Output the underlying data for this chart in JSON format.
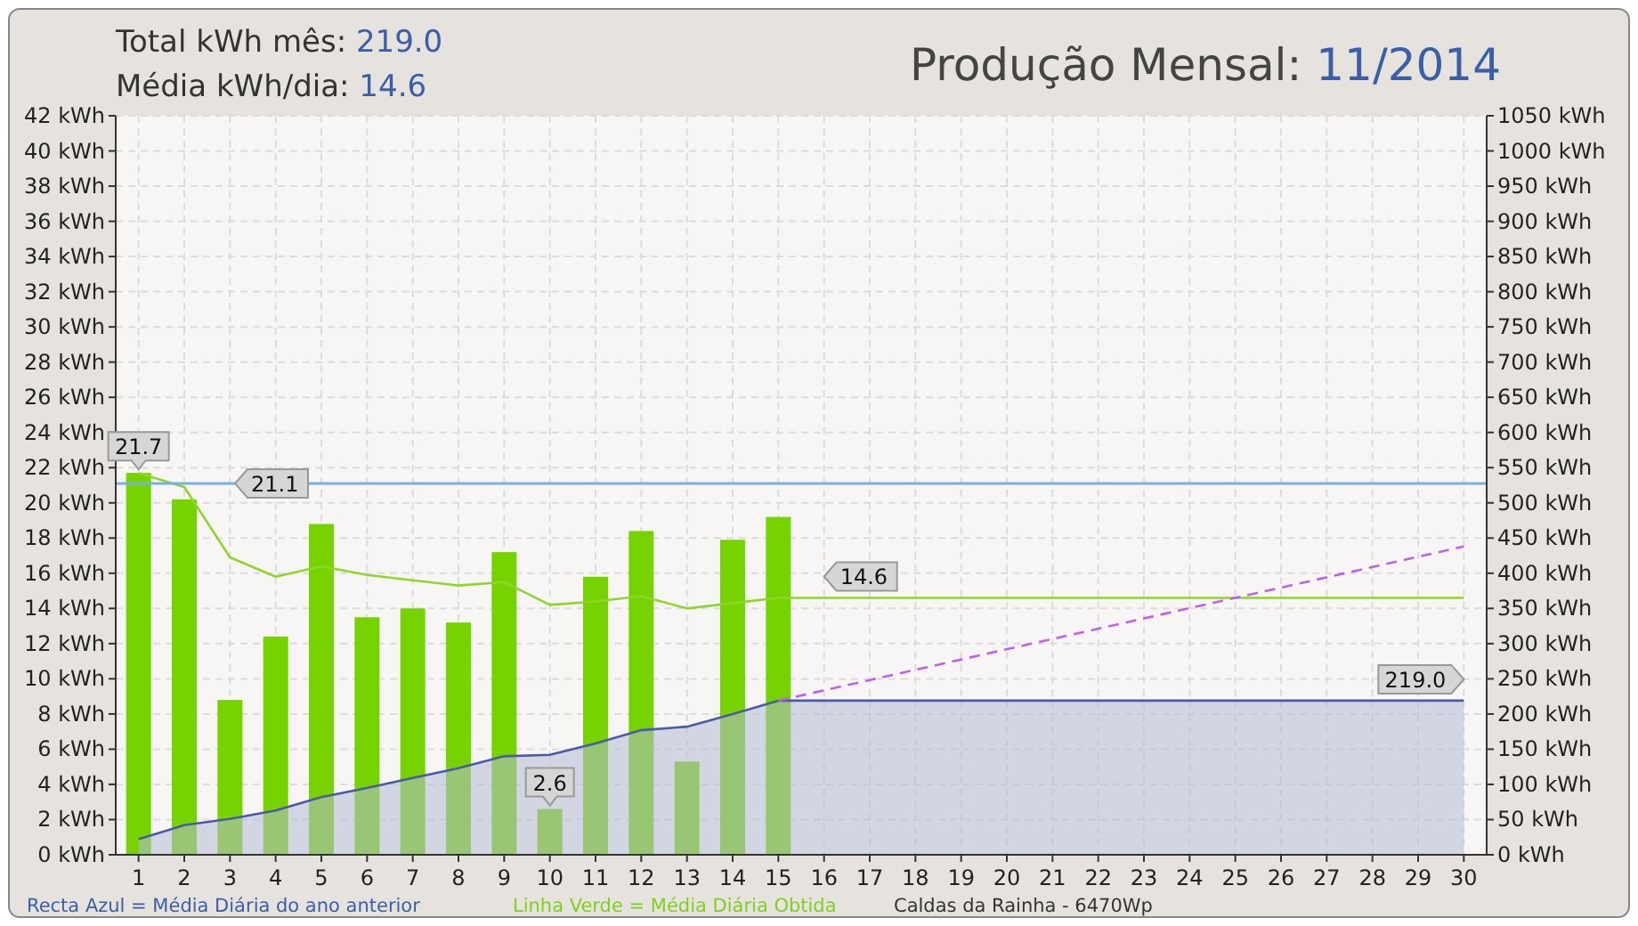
{
  "chart_data": {
    "type": "bar",
    "title": "Produção Mensal: 11/2014",
    "annotations": [
      "Total kWh mês: 219.0",
      "Média kWh/dia: 14.6",
      "Recta Azul = Média Diária do ano anterior",
      "Linha Verde = Média Diária Obtida",
      "Caldas da Rainha  -  6470Wp"
    ],
    "x": [
      1,
      2,
      3,
      4,
      5,
      6,
      7,
      8,
      9,
      10,
      11,
      12,
      13,
      14,
      15,
      16,
      17,
      18,
      19,
      20,
      21,
      22,
      23,
      24,
      25,
      26,
      27,
      28,
      29,
      30
    ],
    "xlim": [
      0.5,
      30.5
    ],
    "xticks": [
      1,
      2,
      3,
      4,
      5,
      6,
      7,
      8,
      9,
      10,
      11,
      12,
      13,
      14,
      15,
      16,
      17,
      18,
      19,
      20,
      21,
      22,
      23,
      24,
      25,
      26,
      27,
      28,
      29,
      30
    ],
    "ylim": [
      0,
      42
    ],
    "yticks": [
      {
        "value": 0,
        "label": "0 kWh"
      },
      {
        "value": 2,
        "label": "2 kWh"
      },
      {
        "value": 4,
        "label": "4 kWh"
      },
      {
        "value": 6,
        "label": "6 kWh"
      },
      {
        "value": 8,
        "label": "8 kWh"
      },
      {
        "value": 10,
        "label": "10 kWh"
      },
      {
        "value": 12,
        "label": "12 kWh"
      },
      {
        "value": 14,
        "label": "14 kWh"
      },
      {
        "value": 16,
        "label": "16 kWh"
      },
      {
        "value": 18,
        "label": "18 kWh"
      },
      {
        "value": 20,
        "label": "20 kWh"
      },
      {
        "value": 22,
        "label": "22 kWh"
      },
      {
        "value": 24,
        "label": "24 kWh"
      },
      {
        "value": 26,
        "label": "26 kWh"
      },
      {
        "value": 28,
        "label": "28 kWh"
      },
      {
        "value": 30,
        "label": "30 kWh"
      },
      {
        "value": 32,
        "label": "32 kWh"
      },
      {
        "value": 34,
        "label": "34 kWh"
      },
      {
        "value": 36,
        "label": "36 kWh"
      },
      {
        "value": 38,
        "label": "38 kWh"
      },
      {
        "value": 40,
        "label": "40 kWh"
      },
      {
        "value": 42,
        "label": "42 kWh"
      }
    ],
    "y2lim": [
      0,
      1050
    ],
    "y2ticks": [
      {
        "value": 0,
        "label": "0 kWh"
      },
      {
        "value": 50,
        "label": "50 kWh"
      },
      {
        "value": 100,
        "label": "100 kWh"
      },
      {
        "value": 150,
        "label": "150 kWh"
      },
      {
        "value": 200,
        "label": "200 kWh"
      },
      {
        "value": 250,
        "label": "250 kWh"
      },
      {
        "value": 300,
        "label": "300 kWh"
      },
      {
        "value": 350,
        "label": "350 kWh"
      },
      {
        "value": 400,
        "label": "400 kWh"
      },
      {
        "value": 450,
        "label": "450 kWh"
      },
      {
        "value": 500,
        "label": "500 kWh"
      },
      {
        "value": 550,
        "label": "550 kWh"
      },
      {
        "value": 600,
        "label": "600 kWh"
      },
      {
        "value": 650,
        "label": "650 kWh"
      },
      {
        "value": 700,
        "label": "700 kWh"
      },
      {
        "value": 750,
        "label": "750 kWh"
      },
      {
        "value": 800,
        "label": "800 kWh"
      },
      {
        "value": 850,
        "label": "850 kWh"
      },
      {
        "value": 900,
        "label": "900 kWh"
      },
      {
        "value": 950,
        "label": "950 kWh"
      },
      {
        "value": 1000,
        "label": "1000 kWh"
      },
      {
        "value": 1050,
        "label": "1050 kWh"
      }
    ],
    "grid": true,
    "legend": false,
    "series": [
      {
        "color": "#76d300",
        "values": [
          21.7,
          20.2,
          8.8,
          12.4,
          18.8,
          13.5,
          14.0,
          13.2,
          17.2,
          2.6,
          15.8,
          18.4,
          5.3,
          17.9,
          19.2,
          null,
          null,
          null,
          null,
          null,
          null,
          null,
          null,
          null,
          null,
          null,
          null,
          null,
          null,
          null
        ],
        "value_labels": [
          "21.7",
          null,
          null,
          null,
          null,
          null,
          null,
          null,
          null,
          "2.6",
          null,
          null,
          null,
          null,
          null,
          null,
          null,
          null,
          null,
          null,
          null,
          null,
          null,
          null,
          null,
          null,
          null,
          null,
          null,
          null
        ]
      },
      {
        "type": "area",
        "axis": "y2",
        "color": "#4a5aa8",
        "values": [
          22,
          42,
          51,
          63,
          82,
          95,
          109,
          123,
          140,
          142,
          158,
          177,
          182,
          200,
          219.0,
          219.0,
          219.0,
          219.0,
          219.0,
          219.0,
          219.0,
          219.0,
          219.0,
          219.0,
          219.0,
          219.0,
          219.0,
          219.0,
          219.0,
          219.0
        ],
        "value_labels": [
          null,
          null,
          null,
          null,
          null,
          null,
          null,
          null,
          null,
          null,
          null,
          null,
          null,
          null,
          null,
          null,
          null,
          null,
          null,
          null,
          null,
          null,
          null,
          null,
          null,
          null,
          null,
          null,
          null,
          "219.0"
        ]
      },
      {
        "type": "line",
        "color": "#8ed62a",
        "values": [
          21.7,
          20.9,
          16.9,
          15.8,
          16.4,
          15.9,
          15.6,
          15.3,
          15.5,
          14.2,
          14.4,
          14.7,
          14.0,
          14.3,
          14.6,
          14.6,
          14.6,
          14.6,
          14.6,
          14.6,
          14.6,
          14.6,
          14.6,
          14.6,
          14.6,
          14.6,
          14.6,
          14.6,
          14.6,
          14.6
        ],
        "value_labels": [
          null,
          null,
          null,
          null,
          null,
          null,
          null,
          null,
          null,
          null,
          null,
          null,
          null,
          null,
          null,
          "14.6",
          null,
          null,
          null,
          null,
          null,
          null,
          null,
          null,
          null,
          null,
          null,
          null,
          null,
          null
        ]
      },
      {
        "type": "line",
        "axis": "y2",
        "color": "#c060e8",
        "line_style": "dashed",
        "x": [
          15,
          30
        ],
        "values": [
          219.0,
          438
        ]
      }
    ],
    "ref_lines": [
      {
        "axis": "y",
        "value": 21.1,
        "label": "21.1",
        "color": "#7ab0e0"
      }
    ]
  }
}
